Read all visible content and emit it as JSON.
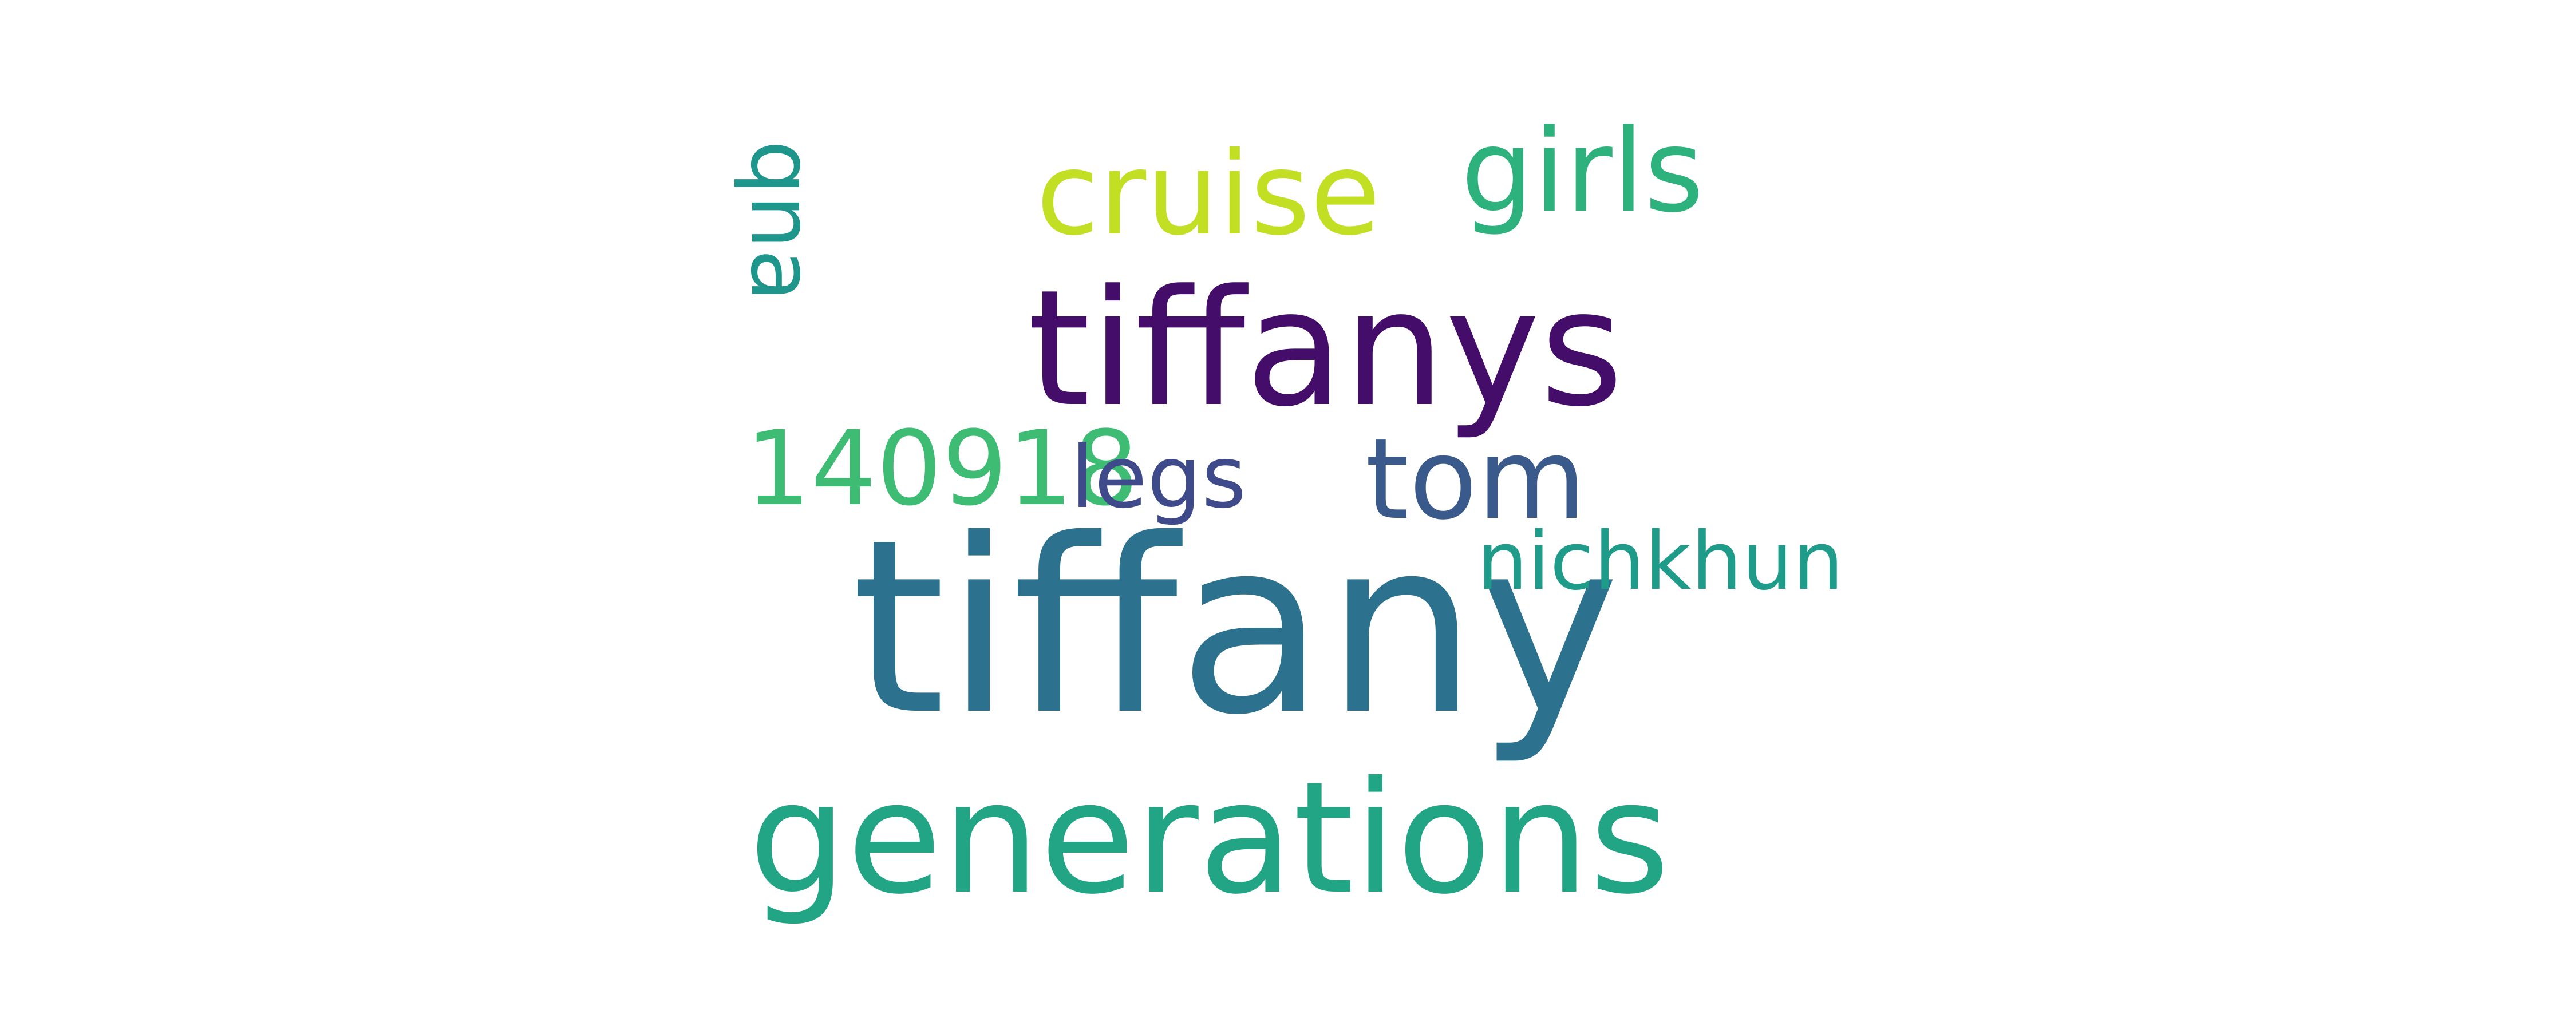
{
  "word_cloud": {
    "background_color": "#ffffff",
    "words": [
      {
        "key": "tiffany",
        "text": "tiffany",
        "color": "#2c728e"
      },
      {
        "key": "generations",
        "text": "generations",
        "color": "#21a585"
      },
      {
        "key": "tiffanys",
        "text": "tiffanys",
        "color": "#440d6a"
      },
      {
        "key": "cruise",
        "text": "cruise",
        "color": "#c2df23"
      },
      {
        "key": "girls",
        "text": "girls",
        "color": "#2db27d"
      },
      {
        "key": "tom",
        "text": "tom",
        "color": "#3b5a8c"
      },
      {
        "key": "140918",
        "text": "140918",
        "color": "#3ebc74"
      },
      {
        "key": "legs",
        "text": "legs",
        "color": "#3e4a89"
      },
      {
        "key": "nichkhun",
        "text": "nichkhun",
        "color": "#1e9c89"
      },
      {
        "key": "qna",
        "text": "qna",
        "color": "#1f968b",
        "orientation": "vertical"
      }
    ]
  }
}
